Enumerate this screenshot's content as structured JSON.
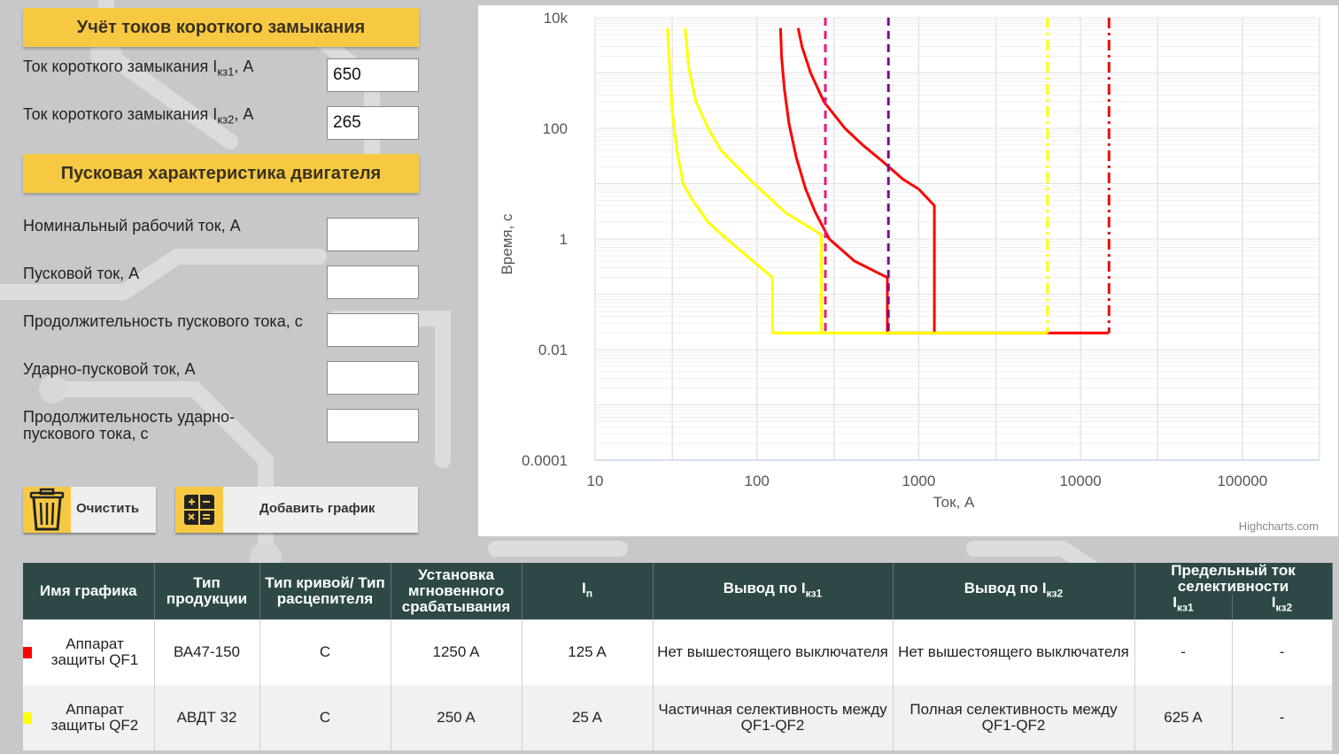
{
  "shortcircuit": {
    "title": "Учёт токов короткого замыкания",
    "ik1_label": "Ток короткого замыкания I",
    "ik1_sub": "кз1",
    "ik1_unit": ", А",
    "ik1_value": "650",
    "ik2_label": "Ток короткого замыкания I",
    "ik2_sub": "кз2",
    "ik2_unit": ", А",
    "ik2_value": "265"
  },
  "motor": {
    "title": "Пусковая характеристика двигателя",
    "fields": [
      {
        "label": "Номинальный рабочий ток, А",
        "value": ""
      },
      {
        "label": "Пусковой ток, А",
        "value": ""
      },
      {
        "label": "Продолжительность пускового тока, с",
        "value": ""
      },
      {
        "label": "Ударно-пусковой ток, А",
        "value": ""
      },
      {
        "label": "Продолжительность ударно-пускового тока, с",
        "value": ""
      }
    ]
  },
  "buttons": {
    "clear_label": "Очистить",
    "add_label": "Добавить график"
  },
  "chart_data": {
    "type": "line",
    "credits": "Highcharts.com",
    "xlabel": "Ток, А",
    "ylabel": "Время, с",
    "xscale": "log",
    "yscale": "log",
    "xlim": [
      10,
      300000
    ],
    "ylim": [
      0.0001,
      10000
    ],
    "x_ticks": [
      "10",
      "100",
      "1000",
      "10000",
      "100000"
    ],
    "y_ticks": [
      "10k",
      "100",
      "1",
      "0.01",
      "0.0001"
    ],
    "series": [
      {
        "color": "#ff0000",
        "style": "solid",
        "x": [
          140,
          142,
          148,
          158,
          175,
          200,
          230,
          280,
          400,
          640,
          640,
          640,
          2000,
          6250,
          15000
        ],
        "y": [
          6500,
          2000,
          500,
          120,
          30,
          8,
          3,
          1,
          0.4,
          0.2,
          0.02,
          0.02,
          0.02,
          0.02,
          0.02
        ]
      },
      {
        "color": "#ff0000",
        "style": "solid",
        "x": [
          180,
          190,
          215,
          260,
          350,
          450,
          600,
          800,
          1000,
          1250,
          1250,
          1250
        ],
        "y": [
          6500,
          3000,
          1000,
          300,
          100,
          50,
          25,
          12,
          8,
          4,
          1,
          0.02
        ]
      },
      {
        "color": "#ffff00",
        "style": "solid",
        "x": [
          28,
          29,
          30,
          32,
          35,
          40,
          50,
          65,
          80,
          125,
          125,
          250,
          6250
        ],
        "y": [
          6500,
          1000,
          200,
          40,
          10,
          5,
          2,
          1,
          0.6,
          0.2,
          0.02,
          0.02,
          0.02
        ]
      },
      {
        "color": "#ffff00",
        "style": "solid",
        "x": [
          36,
          38,
          42,
          50,
          60,
          90,
          150,
          250,
          250,
          250
        ],
        "y": [
          6500,
          1200,
          300,
          100,
          40,
          12,
          3,
          1.2,
          0.2,
          0.02
        ]
      },
      {
        "color": "#e6197a",
        "style": "dash",
        "x": [
          265,
          265
        ],
        "y": [
          10000,
          0.02
        ]
      },
      {
        "color": "#7b0d87",
        "style": "dash",
        "x": [
          650,
          650
        ],
        "y": [
          10000,
          0.02
        ]
      },
      {
        "color": "#ffff00",
        "style": "dashdot",
        "x": [
          6250,
          6250
        ],
        "y": [
          10000,
          0.02
        ]
      },
      {
        "color": "#e01010",
        "style": "dashdot",
        "x": [
          15000,
          15000
        ],
        "y": [
          10000,
          0.02
        ]
      }
    ]
  },
  "table": {
    "headers": {
      "name": "Имя графика",
      "type": "Тип продукции",
      "curve": "Тип кривой/ Тип расцепителя",
      "inst": "Установка мгновенного срабатывания",
      "in_main": "I",
      "in_sub": "n",
      "v1_main": "Вывод по I",
      "v1_sub": "кз1",
      "v2_main": "Вывод по I",
      "v2_sub": "кз2",
      "limit": "Предельный ток селективности",
      "lim1_main": "I",
      "lim1_sub": "кз1",
      "lim2_main": "I",
      "lim2_sub": "кз2"
    },
    "rows": [
      {
        "color": "#ff0000",
        "name": "Аппарат защиты QF1",
        "type": "ВА47-150",
        "curve": "C",
        "inst": "1250 A",
        "in": "125 A",
        "v1": "Нет вышестоящего выключателя",
        "v2": "Нет вышестоящего выключателя",
        "lim1": "-",
        "lim2": "-"
      },
      {
        "color": "#ffff00",
        "name": "Аппарат защиты QF2",
        "type": "АВДТ 32",
        "curve": "C",
        "inst": "250 A",
        "in": "25 A",
        "v1": "Частичная селективность между QF1-QF2",
        "v2": "Полная селективность между QF1-QF2",
        "lim1": "625 A",
        "lim2": "-"
      }
    ]
  }
}
